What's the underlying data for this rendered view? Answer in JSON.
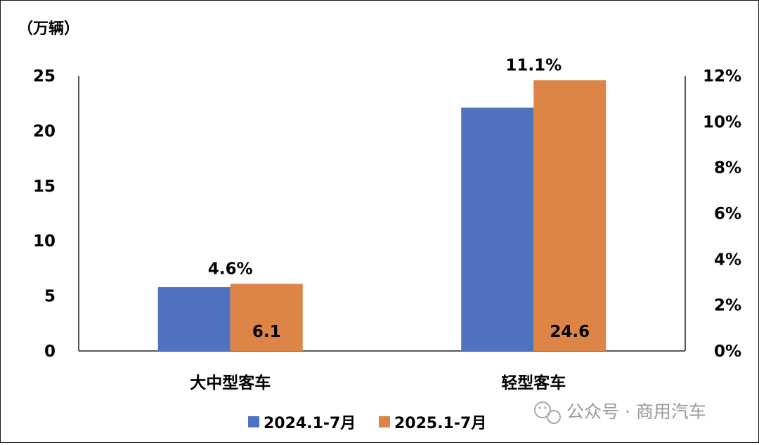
{
  "chart_data": {
    "type": "bar",
    "categories": [
      "大中型客车",
      "轻型客车"
    ],
    "series": [
      {
        "name": "2024.1-7月",
        "color": "#4F72C0",
        "values": [
          5.8,
          22.1
        ]
      },
      {
        "name": "2025.1-7月",
        "color": "#DD8447",
        "values": [
          6.1,
          24.6
        ],
        "labels": [
          "6.1",
          "24.6"
        ]
      }
    ],
    "growth_labels": [
      "4.6%",
      "11.1%"
    ],
    "y_axis_label": "（万辆）",
    "ylim": [
      0,
      25
    ],
    "y_ticks": [
      "0",
      "5",
      "10",
      "15",
      "20",
      "25"
    ],
    "y2lim": [
      0,
      12
    ],
    "y2_ticks": [
      "0%",
      "2%",
      "4%",
      "6%",
      "8%",
      "10%",
      "12%"
    ],
    "grid": false,
    "legend_position": "bottom"
  },
  "watermark": {
    "text": "公众号 · 商用汽车",
    "icon": "wechat-icon"
  }
}
